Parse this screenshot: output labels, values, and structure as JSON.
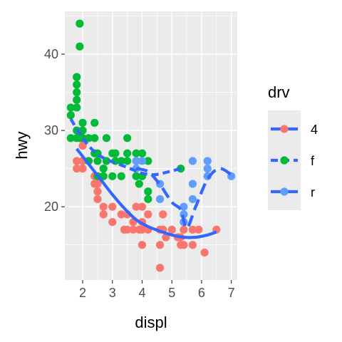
{
  "chart_data": {
    "type": "scatter",
    "xlabel": "displ",
    "ylabel": "hwy",
    "xlim": [
      1.4,
      7.2
    ],
    "ylim": [
      10.4,
      45.6
    ],
    "x_ticks": [
      2,
      3,
      4,
      5,
      6,
      7
    ],
    "y_ticks": [
      20,
      30,
      40
    ],
    "grid": true,
    "legend": {
      "title": "drv",
      "position": "right",
      "entries": [
        {
          "label": "4",
          "color": "#F8766D",
          "linetype": "solid"
        },
        {
          "label": "f",
          "color": "#00BA38",
          "linetype": "dashed"
        },
        {
          "label": "r",
          "color": "#619CFF",
          "linetype": "longdash"
        }
      ]
    },
    "smooth_color": "#3366FF",
    "series": [
      {
        "name": "4",
        "color": "#F8766D",
        "points": [
          [
            1.8,
            26
          ],
          [
            1.8,
            25
          ],
          [
            2.0,
            28
          ],
          [
            2.0,
            26
          ],
          [
            2.0,
            25
          ],
          [
            2.2,
            26
          ],
          [
            2.4,
            24
          ],
          [
            2.4,
            23
          ],
          [
            2.5,
            23
          ],
          [
            2.5,
            22
          ],
          [
            2.5,
            21
          ],
          [
            2.7,
            20
          ],
          [
            2.7,
            19
          ],
          [
            3.0,
            20
          ],
          [
            3.0,
            18
          ],
          [
            3.3,
            19
          ],
          [
            3.4,
            17
          ],
          [
            3.5,
            17
          ],
          [
            3.5,
            19
          ],
          [
            3.7,
            18
          ],
          [
            3.7,
            17
          ],
          [
            3.8,
            20
          ],
          [
            3.9,
            17
          ],
          [
            4.0,
            20
          ],
          [
            4.0,
            18
          ],
          [
            4.0,
            17
          ],
          [
            4.0,
            15
          ],
          [
            4.2,
            17
          ],
          [
            4.2,
            19
          ],
          [
            4.6,
            17
          ],
          [
            4.6,
            15
          ],
          [
            4.6,
            12
          ],
          [
            4.7,
            17
          ],
          [
            4.7,
            19
          ],
          [
            4.7,
            17
          ],
          [
            4.8,
            16
          ],
          [
            5.0,
            17
          ],
          [
            5.2,
            16
          ],
          [
            5.3,
            15
          ],
          [
            5.3,
            16
          ],
          [
            5.4,
            17
          ],
          [
            5.4,
            15
          ],
          [
            5.4,
            18
          ],
          [
            5.7,
            17
          ],
          [
            5.7,
            15
          ],
          [
            5.9,
            17
          ],
          [
            6.1,
            14
          ],
          [
            6.5,
            17
          ]
        ]
      },
      {
        "name": "f",
        "color": "#00BA38",
        "points": [
          [
            1.6,
            33
          ],
          [
            1.6,
            32
          ],
          [
            1.6,
            29
          ],
          [
            1.8,
            37
          ],
          [
            1.8,
            36
          ],
          [
            1.8,
            35
          ],
          [
            1.8,
            34
          ],
          [
            1.8,
            33
          ],
          [
            1.8,
            30
          ],
          [
            1.8,
            29
          ],
          [
            1.9,
            44
          ],
          [
            1.9,
            41
          ],
          [
            1.9,
            29
          ],
          [
            2.0,
            31
          ],
          [
            2.0,
            30
          ],
          [
            2.0,
            29
          ],
          [
            2.2,
            29
          ],
          [
            2.2,
            26
          ],
          [
            2.4,
            31
          ],
          [
            2.4,
            29
          ],
          [
            2.4,
            27
          ],
          [
            2.5,
            27
          ],
          [
            2.5,
            26
          ],
          [
            2.5,
            24
          ],
          [
            2.7,
            25
          ],
          [
            2.7,
            24
          ],
          [
            2.8,
            29
          ],
          [
            2.8,
            26
          ],
          [
            3.0,
            27
          ],
          [
            3.0,
            24
          ],
          [
            3.1,
            26
          ],
          [
            3.1,
            27
          ],
          [
            3.3,
            26
          ],
          [
            3.3,
            24
          ],
          [
            3.5,
            29
          ],
          [
            3.5,
            26
          ],
          [
            3.5,
            27
          ],
          [
            3.8,
            27
          ],
          [
            3.8,
            26
          ],
          [
            3.8,
            24
          ],
          [
            3.9,
            23
          ],
          [
            4.0,
            27
          ],
          [
            4.2,
            26
          ],
          [
            4.2,
            22
          ],
          [
            4.2,
            21
          ],
          [
            4.0,
            24
          ],
          [
            5.3,
            25
          ]
        ]
      },
      {
        "name": "r",
        "color": "#619CFF",
        "points": [
          [
            3.8,
            26
          ],
          [
            3.8,
            25
          ],
          [
            4.0,
            26
          ],
          [
            4.6,
            23
          ],
          [
            4.6,
            21
          ],
          [
            5.4,
            20
          ],
          [
            5.4,
            19
          ],
          [
            5.4,
            18
          ],
          [
            5.7,
            26
          ],
          [
            5.7,
            23
          ],
          [
            5.7,
            21
          ],
          [
            6.2,
            26
          ],
          [
            6.2,
            25
          ],
          [
            6.2,
            24
          ],
          [
            7.0,
            24
          ]
        ]
      }
    ],
    "smooth": [
      {
        "name": "4",
        "points": [
          [
            1.8,
            27.6
          ],
          [
            2.2,
            25.6
          ],
          [
            2.6,
            23.6
          ],
          [
            3.0,
            21.6
          ],
          [
            3.4,
            19.8
          ],
          [
            3.8,
            18.3
          ],
          [
            4.2,
            17.4
          ],
          [
            4.6,
            16.8
          ],
          [
            5.0,
            16.3
          ],
          [
            5.4,
            16.0
          ],
          [
            5.8,
            16.0
          ],
          [
            6.2,
            16.3
          ],
          [
            6.5,
            16.7
          ]
        ]
      },
      {
        "name": "f",
        "points": [
          [
            1.6,
            31.5
          ],
          [
            2.0,
            29.0
          ],
          [
            2.4,
            27.2
          ],
          [
            2.8,
            26.2
          ],
          [
            3.2,
            25.6
          ],
          [
            3.6,
            25.0
          ],
          [
            4.0,
            24.4
          ],
          [
            4.4,
            24.2
          ],
          [
            4.8,
            24.5
          ],
          [
            5.3,
            25.0
          ]
        ]
      },
      {
        "name": "r",
        "points": [
          [
            3.8,
            25.0
          ],
          [
            4.2,
            24.6
          ],
          [
            4.6,
            22.9
          ],
          [
            5.0,
            20.6
          ],
          [
            5.3,
            19.6
          ],
          [
            5.5,
            17.2
          ],
          [
            5.8,
            20.0
          ],
          [
            6.2,
            23.6
          ],
          [
            6.6,
            25.0
          ],
          [
            7.0,
            24.2
          ]
        ]
      }
    ]
  }
}
